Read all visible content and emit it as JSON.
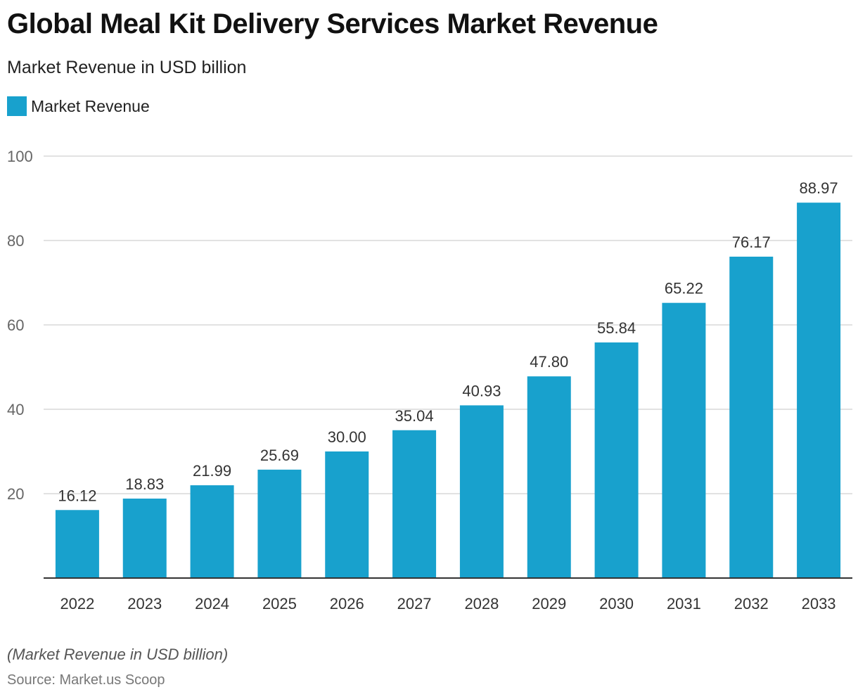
{
  "title": "Global Meal Kit Delivery Services Market Revenue",
  "subtitle": "Market Revenue in USD billion",
  "footnote": "(Market Revenue in USD billion)",
  "source": "Source: Market.us Scoop",
  "colors": {
    "bar": "#18a1cd",
    "grid": "#d9d9d9",
    "axis": "#333333"
  },
  "chart_data": {
    "type": "bar",
    "title": "Global Meal Kit Delivery Services Market Revenue",
    "categories": [
      "2022",
      "2023",
      "2024",
      "2025",
      "2026",
      "2027",
      "2028",
      "2029",
      "2030",
      "2031",
      "2032",
      "2033"
    ],
    "series": [
      {
        "name": "Market Revenue",
        "values": [
          16.12,
          18.83,
          21.99,
          25.69,
          30.0,
          35.04,
          40.93,
          47.8,
          55.84,
          65.22,
          76.17,
          88.97
        ]
      }
    ],
    "data_labels": [
      "16.12",
      "18.83",
      "21.99",
      "25.69",
      "30.00",
      "35.04",
      "40.93",
      "47.80",
      "55.84",
      "65.22",
      "76.17",
      "88.97"
    ],
    "ylim": [
      0,
      100
    ],
    "yticks": [
      20,
      40,
      60,
      80,
      100
    ],
    "grid": true,
    "legend": "top-left"
  }
}
